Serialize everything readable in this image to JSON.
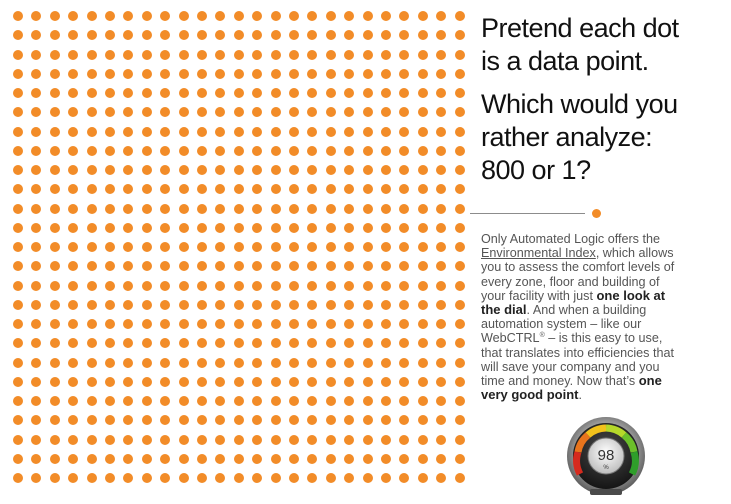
{
  "headline": {
    "line1": "Pretend each dot\nis a data point.",
    "line2": "Which would you\nrather analyze:\n800 or 1?"
  },
  "body": {
    "p1": "Only Automated Logic offers the ",
    "link": "Environmental Index",
    "p2": ", which allows you to assess the comfort levels of every zone, floor and building of your facility with just ",
    "bold1": "one look at the dial",
    "p3": ". And when a building automation system – like our WebCTRL",
    "reg": "®",
    "p4": " – is this easy to use, that translates into efficiencies that will save your company and you time and money. Now that’s ",
    "bold2": "one very good point",
    "p5": "."
  },
  "dial": {
    "value": "98",
    "unit": "%"
  },
  "colors": {
    "dot": "#f28c28",
    "text": "#555555",
    "headline": "#111111"
  }
}
